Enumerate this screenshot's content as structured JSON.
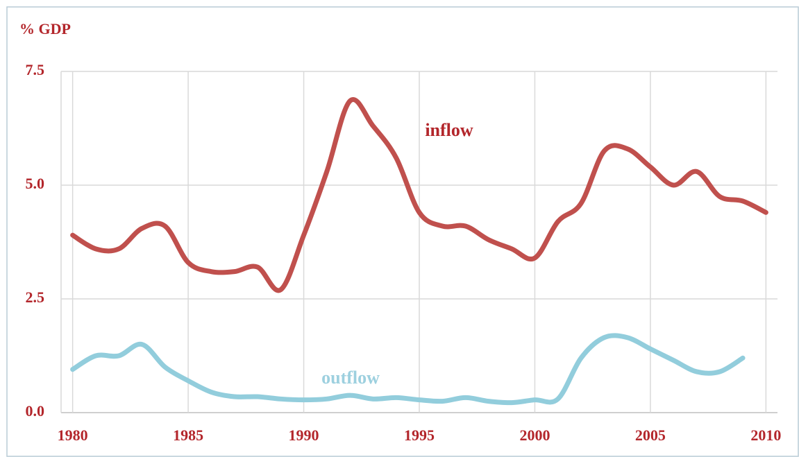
{
  "chart_data": {
    "type": "line",
    "ylabel": "% GDP",
    "x": [
      1980,
      1981,
      1982,
      1983,
      1984,
      1985,
      1986,
      1987,
      1988,
      1989,
      1990,
      1991,
      1992,
      1993,
      1994,
      1995,
      1996,
      1997,
      1998,
      1999,
      2000,
      2001,
      2002,
      2003,
      2004,
      2005,
      2006,
      2007,
      2008,
      2009,
      2010
    ],
    "series": [
      {
        "name": "inflow",
        "color": "#c0504d",
        "values": [
          3.9,
          3.6,
          3.6,
          4.05,
          4.1,
          3.3,
          3.1,
          3.1,
          3.2,
          2.7,
          3.9,
          5.3,
          6.85,
          6.3,
          5.6,
          4.4,
          4.1,
          4.1,
          3.8,
          3.6,
          3.4,
          4.2,
          4.6,
          5.75,
          5.8,
          5.4,
          5.0,
          5.3,
          4.75,
          4.65,
          4.4
        ]
      },
      {
        "name": "outflow",
        "color": "#92cddc",
        "values": [
          0.95,
          1.25,
          1.25,
          1.5,
          1.0,
          0.7,
          0.45,
          0.35,
          0.35,
          0.3,
          0.28,
          0.3,
          0.38,
          0.3,
          0.33,
          0.28,
          0.25,
          0.33,
          0.25,
          0.22,
          0.28,
          0.3,
          1.2,
          1.65,
          1.65,
          1.4,
          1.15,
          0.9,
          0.9,
          1.2,
          null
        ]
      }
    ],
    "xlim": [
      1979.5,
      2010.5
    ],
    "xticks": [
      1980,
      1985,
      1990,
      1995,
      2000,
      2005,
      2010
    ],
    "ylim": [
      0,
      7.5
    ],
    "yticks": [
      {
        "value": 0,
        "label": "0.0"
      },
      2.5,
      {
        "value": 5,
        "label": "5.0"
      },
      7.5
    ],
    "grid": true
  }
}
